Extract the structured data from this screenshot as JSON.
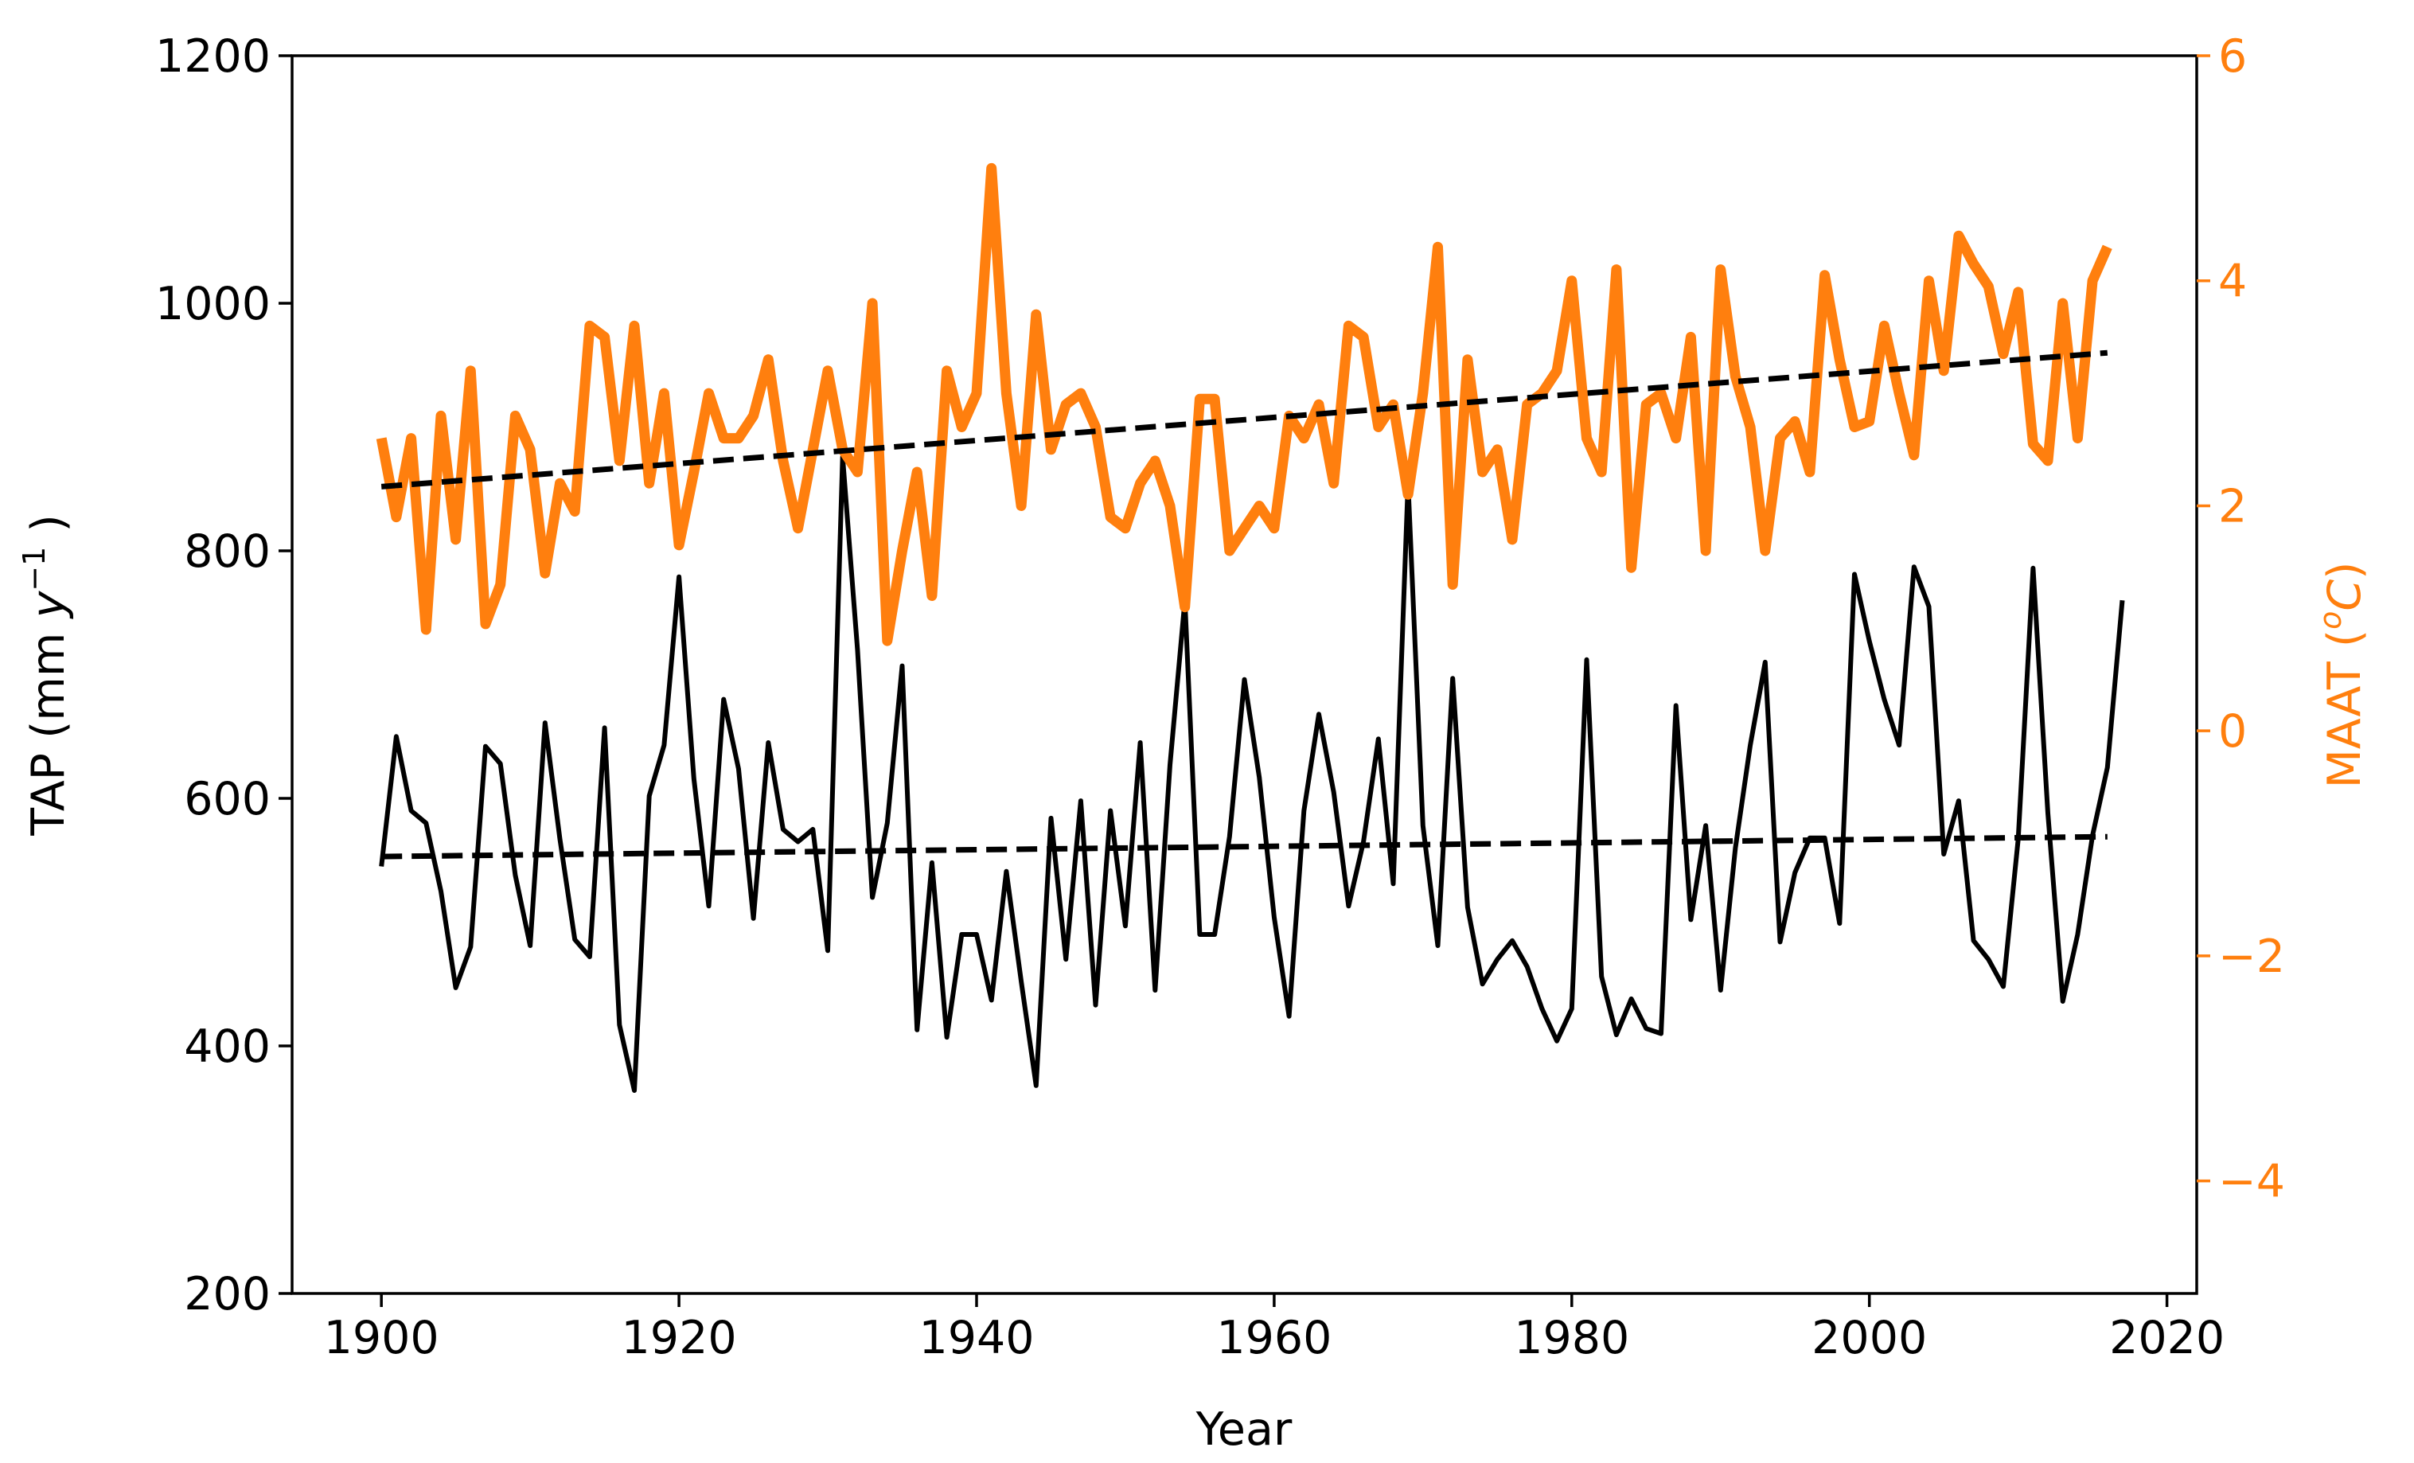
{
  "chart_data": {
    "type": "line",
    "xlabel": "Year",
    "ylabel_left_base": "TAP (mm ",
    "ylabel_left_var": "y",
    "ylabel_left_sup": "−1",
    "ylabel_left_end": " )",
    "ylabel_right_base": "MAAT (",
    "ylabel_right_sup": "o",
    "ylabel_right_var": "C",
    "ylabel_right_end": ")",
    "xlim": [
      1894,
      2022
    ],
    "ylim_left": [
      200,
      1200
    ],
    "ylim_right": [
      -5,
      6
    ],
    "xticks": [
      1900,
      1920,
      1940,
      1960,
      1980,
      2000,
      2020
    ],
    "xtick_labels": [
      "1900",
      "1920",
      "1940",
      "1960",
      "1980",
      "2000",
      "2020"
    ],
    "yticks_left": [
      200,
      400,
      600,
      800,
      1000,
      1200
    ],
    "ytick_labels_left": [
      "200",
      "400",
      "600",
      "800",
      "1000",
      "1200"
    ],
    "yticks_right": [
      -4,
      -2,
      0,
      2,
      4,
      6
    ],
    "ytick_labels_right": [
      "−4",
      "−2",
      "0",
      "2",
      "4",
      "6"
    ],
    "colors": {
      "tap": "#000000",
      "maat": "#ff7f0e"
    },
    "x_start": 1900,
    "series": [
      {
        "name": "TAP",
        "axis": "left",
        "color": "#000000",
        "values": [
          545,
          650,
          590,
          580,
          525,
          447,
          480,
          642,
          628,
          538,
          481,
          661,
          567,
          486,
          472,
          657,
          417,
          364,
          602,
          643,
          779,
          616,
          513,
          680,
          624,
          503,
          645,
          575,
          565,
          575,
          477,
          876,
          720,
          520,
          580,
          707,
          413,
          548,
          407,
          490,
          490,
          437,
          541,
          452,
          368,
          584,
          470,
          598,
          433,
          590,
          497,
          645,
          445,
          627,
          760,
          490,
          490,
          569,
          696,
          617,
          504,
          424,
          590,
          668,
          605,
          513,
          565,
          648,
          531,
          855,
          578,
          481,
          697,
          512,
          450,
          470,
          485,
          464,
          430,
          404,
          430,
          712,
          456,
          409,
          438,
          414,
          410,
          675,
          502,
          578,
          445,
          560,
          643,
          710,
          484,
          540,
          568,
          568,
          499,
          781,
          727,
          680,
          643,
          787,
          755,
          555,
          598,
          485,
          470,
          448,
          567,
          786,
          588,
          436,
          490,
          570,
          625,
          760
        ]
      },
      {
        "name": "MAAT",
        "axis": "right",
        "color": "#ff7f0e",
        "values": [
          2.6,
          1.9,
          2.6,
          0.9,
          2.8,
          1.7,
          3.2,
          0.95,
          1.3,
          2.8,
          2.5,
          1.4,
          2.2,
          1.95,
          3.6,
          3.5,
          2.4,
          3.6,
          2.2,
          3.0,
          1.65,
          2.3,
          3.0,
          2.6,
          2.6,
          2.8,
          3.3,
          2.4,
          1.8,
          2.5,
          3.2,
          2.5,
          2.3,
          3.8,
          0.8,
          1.6,
          2.3,
          1.2,
          3.2,
          2.7,
          3.0,
          5.0,
          3.0,
          2.0,
          3.7,
          2.5,
          2.9,
          3.0,
          2.7,
          1.9,
          1.8,
          2.2,
          2.4,
          2.0,
          1.1,
          2.95,
          2.95,
          1.6,
          1.8,
          2.0,
          1.8,
          2.8,
          2.6,
          2.9,
          2.2,
          3.6,
          3.5,
          2.7,
          2.9,
          2.1,
          3.0,
          4.3,
          1.3,
          3.3,
          2.3,
          2.5,
          1.7,
          2.9,
          3.0,
          3.2,
          4.0,
          2.6,
          2.3,
          4.1,
          1.45,
          2.9,
          3.0,
          2.6,
          3.5,
          1.6,
          4.1,
          3.15,
          2.7,
          1.6,
          2.6,
          2.75,
          2.3,
          4.05,
          3.3,
          2.7,
          2.75,
          3.6,
          3.0,
          2.45,
          4.0,
          3.2,
          4.4,
          4.15,
          3.95,
          3.35,
          3.9,
          2.55,
          2.4,
          3.8,
          2.6,
          4.0,
          4.3
        ]
      },
      {
        "name": "TAP trend",
        "axis": "left",
        "style": "dashed",
        "color": "#000000",
        "x": [
          1900,
          2016
        ],
        "values": [
          553,
          569
        ]
      },
      {
        "name": "MAAT trend",
        "axis": "right",
        "style": "dashed",
        "color": "#000000",
        "x": [
          1900,
          2016
        ],
        "values": [
          2.17,
          3.36
        ]
      }
    ]
  }
}
